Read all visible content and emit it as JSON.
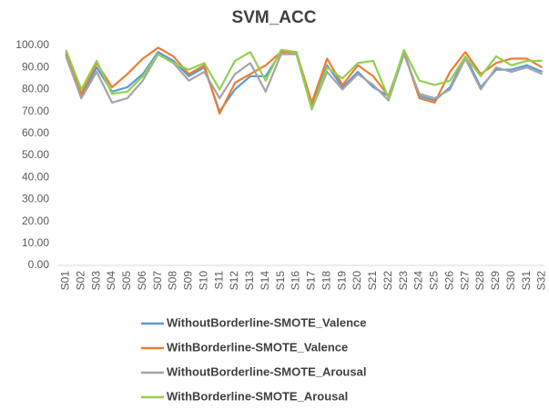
{
  "chart_data": {
    "type": "line",
    "title": "SVM_ACC",
    "categories": [
      "S01",
      "S02",
      "S03",
      "S04",
      "S05",
      "S06",
      "S07",
      "S08",
      "S09",
      "S10",
      "S11",
      "S12",
      "S13",
      "S14",
      "S15",
      "S16",
      "S17",
      "S18",
      "S19",
      "S20",
      "S21",
      "S22",
      "S23",
      "S24",
      "S25",
      "S26",
      "S27",
      "S28",
      "S29",
      "S30",
      "S31",
      "S32"
    ],
    "series": [
      {
        "name": "WithoutBorderline-SMOTE_Valence",
        "color": "#5b9bd5",
        "values": [
          96,
          77,
          90,
          79,
          81,
          87,
          97,
          93,
          86,
          90,
          70,
          80,
          86,
          86,
          97,
          97,
          72,
          91,
          81,
          88,
          81,
          77,
          97,
          77,
          75,
          81,
          95,
          81,
          89,
          89,
          91,
          88
        ]
      },
      {
        "name": "WithBorderline-SMOTE_Valence",
        "color": "#ed7d31",
        "values": [
          97,
          78,
          92,
          81,
          87,
          94,
          99,
          95,
          87,
          91,
          69,
          83,
          87,
          91,
          97,
          97,
          74,
          94,
          82,
          91,
          86,
          77,
          97,
          76,
          74,
          88,
          97,
          87,
          92,
          94,
          94,
          90
        ]
      },
      {
        "name": "WithoutBorderline-SMOTE_Arousal",
        "color": "#a5a5a5",
        "values": [
          95,
          76,
          88,
          74,
          76,
          84,
          96,
          92,
          84,
          88,
          76,
          87,
          92,
          79,
          96,
          96,
          71,
          88,
          80,
          87,
          82,
          75,
          96,
          78,
          76,
          80,
          94,
          80,
          90,
          88,
          90,
          87
        ]
      },
      {
        "name": "WithBorderline-SMOTE_Arousal",
        "color": "#92d050",
        "values": [
          98,
          80,
          93,
          78,
          79,
          86,
          96,
          92,
          89,
          92,
          80,
          93,
          97,
          84,
          98,
          97,
          71,
          90,
          85,
          92,
          93,
          76,
          98,
          84,
          82,
          84,
          95,
          86,
          95,
          91,
          93,
          93
        ]
      }
    ],
    "ylim": [
      0,
      100
    ],
    "yticks": [
      {
        "value": 0,
        "label": "0.00"
      },
      {
        "value": 10,
        "label": "10.00"
      },
      {
        "value": 20,
        "label": "20.00"
      },
      {
        "value": 30,
        "label": "30.00"
      },
      {
        "value": 40,
        "label": "40.00"
      },
      {
        "value": 50,
        "label": "50.00"
      },
      {
        "value": 60,
        "label": "60.00"
      },
      {
        "value": 70,
        "label": "70.00"
      },
      {
        "value": 80,
        "label": "80.00"
      },
      {
        "value": 90,
        "label": "90.00"
      },
      {
        "value": 100,
        "label": "100.00"
      }
    ],
    "grid": false
  }
}
